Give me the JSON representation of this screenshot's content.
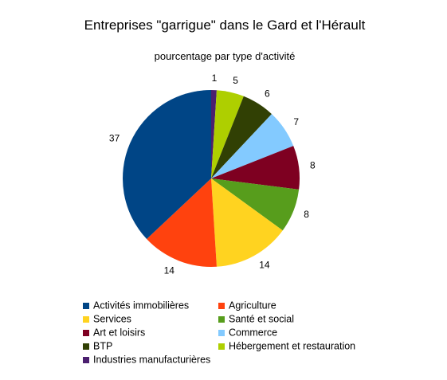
{
  "chart_data": {
    "type": "pie",
    "title": "Entreprises \"garrigue\" dans le Gard et l'Hérault",
    "subtitle": "pourcentage par type d'activité",
    "slices": [
      {
        "label": "Industries manufacturières",
        "value": 1,
        "color": "#4b1f6f"
      },
      {
        "label": "Hébergement et restauration",
        "value": 5,
        "color": "#aecf00"
      },
      {
        "label": "BTP",
        "value": 6,
        "color": "#314004"
      },
      {
        "label": "Commerce",
        "value": 7,
        "color": "#83caff"
      },
      {
        "label": "Art et loisirs",
        "value": 8,
        "color": "#7e0021"
      },
      {
        "label": "Santé et social",
        "value": 8,
        "color": "#579d1c"
      },
      {
        "label": "Services",
        "value": 14,
        "color": "#ffd320"
      },
      {
        "label": "Agriculture",
        "value": 14,
        "color": "#ff420e"
      },
      {
        "label": "Activités immobilières",
        "value": 37,
        "color": "#004586"
      }
    ],
    "legend_order": [
      "Activités immobilières",
      "Agriculture",
      "Services",
      "Santé et social",
      "Art et loisirs",
      "Commerce",
      "BTP",
      "Hébergement et restauration",
      "Industries manufacturières"
    ],
    "legend_position": "bottom"
  }
}
